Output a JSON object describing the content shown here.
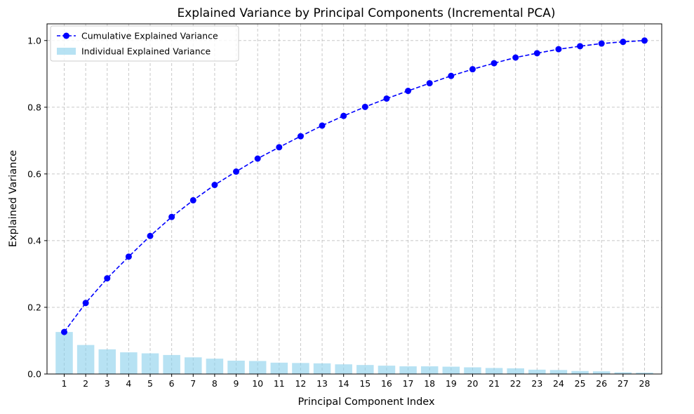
{
  "chart_data": {
    "type": "bar",
    "title": "Explained Variance by Principal Components (Incremental PCA)",
    "xlabel": "Principal Component Index",
    "ylabel": "Explained Variance",
    "categories": [
      "1",
      "2",
      "3",
      "4",
      "5",
      "6",
      "7",
      "8",
      "9",
      "10",
      "11",
      "12",
      "13",
      "14",
      "15",
      "16",
      "17",
      "18",
      "19",
      "20",
      "21",
      "22",
      "23",
      "24",
      "25",
      "26",
      "27",
      "28"
    ],
    "series": [
      {
        "name": "Individual Explained Variance",
        "type": "bar",
        "color": "#87ceeb",
        "values": [
          0.126,
          0.087,
          0.074,
          0.065,
          0.062,
          0.057,
          0.05,
          0.046,
          0.04,
          0.039,
          0.034,
          0.033,
          0.032,
          0.029,
          0.027,
          0.025,
          0.023,
          0.023,
          0.022,
          0.02,
          0.018,
          0.017,
          0.013,
          0.012,
          0.009,
          0.008,
          0.005,
          0.004
        ]
      },
      {
        "name": "Cumulative Explained Variance",
        "type": "line",
        "color": "#0000ff",
        "values": [
          0.126,
          0.213,
          0.287,
          0.352,
          0.414,
          0.471,
          0.521,
          0.567,
          0.607,
          0.646,
          0.68,
          0.713,
          0.745,
          0.774,
          0.801,
          0.826,
          0.849,
          0.872,
          0.894,
          0.914,
          0.932,
          0.949,
          0.962,
          0.974,
          0.983,
          0.991,
          0.996,
          1.0
        ]
      }
    ],
    "yticks": [
      "0.0",
      "0.2",
      "0.4",
      "0.6",
      "0.8",
      "1.0"
    ],
    "ylim": [
      0,
      1.05
    ],
    "grid": true,
    "legend_position": "upper-left"
  }
}
